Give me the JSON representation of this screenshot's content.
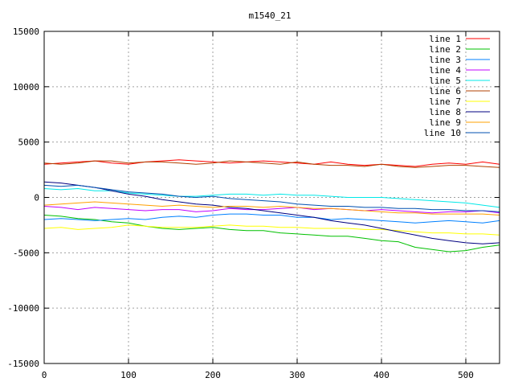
{
  "chart_data": {
    "type": "line",
    "title": "m1540_21",
    "xlabel": "",
    "ylabel": "",
    "xlim": [
      0,
      540
    ],
    "ylim": [
      -15000,
      15000
    ],
    "grid": true,
    "legend_position": "top-right",
    "x_ticks": [
      "0",
      "100",
      "200",
      "300",
      "400",
      "500"
    ],
    "y_ticks": [
      "15000",
      "10000",
      "5000",
      "0",
      "-5000",
      "-10000",
      "-15000"
    ],
    "x": [
      0,
      20,
      40,
      60,
      80,
      100,
      120,
      140,
      160,
      180,
      200,
      220,
      240,
      260,
      280,
      300,
      320,
      340,
      360,
      380,
      400,
      420,
      440,
      460,
      480,
      500,
      520,
      540
    ],
    "series": [
      {
        "name": "line 1",
        "color": "#ff0000",
        "values": [
          3000,
          3100,
          3200,
          3300,
          3100,
          3000,
          3200,
          3300,
          3400,
          3300,
          3200,
          3100,
          3200,
          3300,
          3200,
          3100,
          3000,
          3200,
          3000,
          2900,
          3000,
          2900,
          2800,
          3000,
          3100,
          3000,
          3200,
          3000
        ]
      },
      {
        "name": "line 2",
        "color": "#00c000",
        "values": [
          -1600,
          -1700,
          -1900,
          -2000,
          -2200,
          -2300,
          -2600,
          -2800,
          -2900,
          -2800,
          -2700,
          -2900,
          -3000,
          -3000,
          -3200,
          -3300,
          -3400,
          -3500,
          -3500,
          -3700,
          -3900,
          -4000,
          -4500,
          -4700,
          -4900,
          -4800,
          -4500,
          -4300
        ]
      },
      {
        "name": "line 3",
        "color": "#0080ff",
        "values": [
          -2000,
          -1900,
          -2000,
          -2100,
          -2000,
          -1900,
          -2000,
          -1800,
          -1700,
          -1800,
          -1600,
          -1500,
          -1500,
          -1600,
          -1600,
          -1800,
          -1800,
          -2000,
          -1900,
          -2000,
          -2100,
          -2200,
          -2300,
          -2200,
          -2100,
          -2200,
          -2300,
          -2100
        ]
      },
      {
        "name": "line 4",
        "color": "#c000ff",
        "values": [
          -800,
          -900,
          -1100,
          -900,
          -1000,
          -1100,
          -1200,
          -1100,
          -1100,
          -1300,
          -1200,
          -1000,
          -1100,
          -1100,
          -1000,
          -900,
          -1100,
          -1000,
          -1100,
          -1200,
          -1100,
          -1200,
          -1300,
          -1400,
          -1300,
          -1300,
          -1200,
          -1400
        ]
      },
      {
        "name": "line 5",
        "color": "#00e8e8",
        "values": [
          800,
          700,
          800,
          600,
          600,
          400,
          300,
          200,
          100,
          100,
          200,
          300,
          300,
          200,
          300,
          200,
          200,
          100,
          0,
          0,
          0,
          -100,
          -200,
          -300,
          -400,
          -500,
          -700,
          -900
        ]
      },
      {
        "name": "line 6",
        "color": "#b04000",
        "values": [
          3100,
          3000,
          3100,
          3300,
          3300,
          3100,
          3200,
          3200,
          3100,
          3000,
          3100,
          3300,
          3200,
          3100,
          3000,
          3200,
          3000,
          2900,
          2900,
          2800,
          3000,
          2800,
          2700,
          2800,
          2900,
          2900,
          2800,
          2700
        ]
      },
      {
        "name": "line 7",
        "color": "#ffff00",
        "values": [
          -2800,
          -2700,
          -2900,
          -2800,
          -2700,
          -2500,
          -2600,
          -2700,
          -2700,
          -2700,
          -2600,
          -2500,
          -2600,
          -2600,
          -2700,
          -2700,
          -2800,
          -2800,
          -2800,
          -2900,
          -2900,
          -3000,
          -3100,
          -3200,
          -3200,
          -3300,
          -3300,
          -3400
        ]
      },
      {
        "name": "line 8",
        "color": "#000080",
        "values": [
          1400,
          1300,
          1100,
          900,
          600,
          300,
          100,
          -200,
          -400,
          -600,
          -700,
          -900,
          -1000,
          -1200,
          -1400,
          -1600,
          -1800,
          -2100,
          -2300,
          -2500,
          -2800,
          -3100,
          -3400,
          -3700,
          -3900,
          -4100,
          -4200,
          -4100
        ]
      },
      {
        "name": "line 9",
        "color": "#ffa000",
        "values": [
          -700,
          -600,
          -500,
          -400,
          -500,
          -600,
          -700,
          -800,
          -700,
          -800,
          -900,
          -800,
          -800,
          -900,
          -800,
          -900,
          -1000,
          -1000,
          -1100,
          -1200,
          -1300,
          -1400,
          -1400,
          -1500,
          -1500,
          -1500,
          -1500,
          -1600
        ]
      },
      {
        "name": "line 10",
        "color": "#0050b0",
        "values": [
          1100,
          1000,
          1100,
          900,
          700,
          500,
          400,
          300,
          100,
          0,
          100,
          -100,
          -200,
          -300,
          -400,
          -600,
          -700,
          -800,
          -800,
          -900,
          -900,
          -1000,
          -1000,
          -1100,
          -1100,
          -1200,
          -1200,
          -1300
        ]
      }
    ]
  }
}
